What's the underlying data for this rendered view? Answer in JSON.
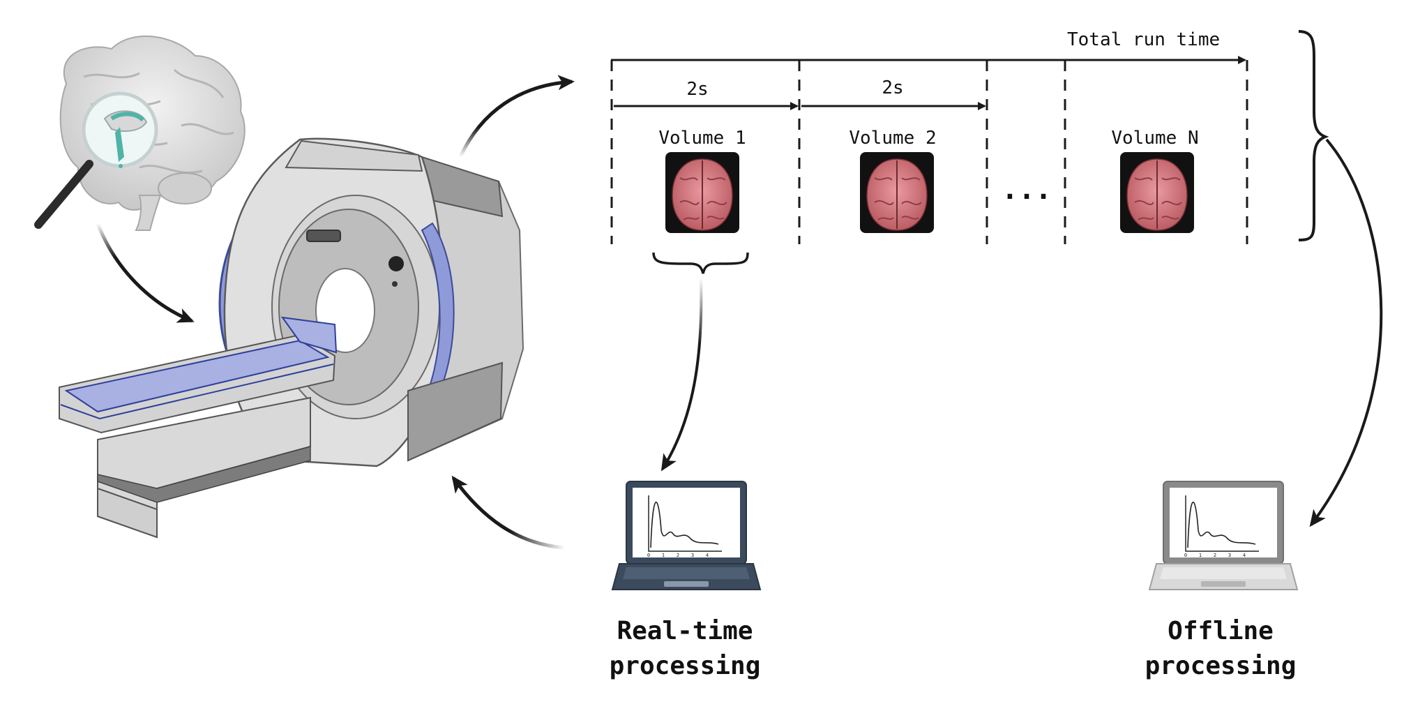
{
  "timeline": {
    "total_label": "Total run time",
    "interval_1": "2s",
    "interval_2": "2s",
    "volume_1": "Volume 1",
    "volume_2": "Volume 2",
    "volume_n": "Volume N",
    "ellipsis": "..."
  },
  "processing": {
    "realtime_line1": "Real-time",
    "realtime_line2": "processing",
    "offline_line1": "Offline",
    "offline_line2": "processing"
  },
  "plot_ticks": [
    "0",
    "1",
    "2",
    "3",
    "4"
  ],
  "colors": {
    "ink": "#1a1a1a",
    "scanner_body": "#dcdcdc",
    "scanner_ring": "#8f9ad8",
    "brain_pink": "#d98088",
    "laptop_dark": "#3b4a5c",
    "laptop_light": "#8a8a8a"
  }
}
